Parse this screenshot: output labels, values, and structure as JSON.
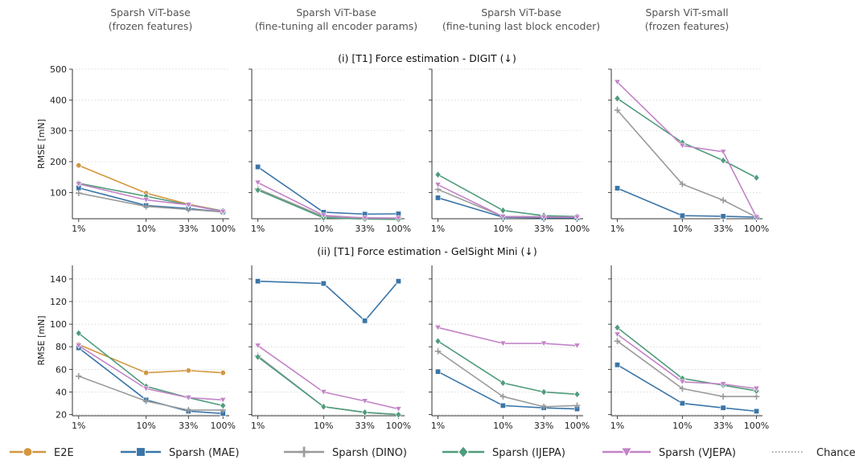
{
  "figure": {
    "column_titles": [
      [
        "Sparsh ViT-base",
        "(frozen features)"
      ],
      [
        "Sparsh ViT-base",
        "(fine-tuning all encoder params)"
      ],
      [
        "Sparsh ViT-base",
        "(fine-tuning last block encoder)"
      ],
      [
        "Sparsh ViT-small",
        "(frozen features)"
      ]
    ],
    "row_titles": [
      "(i) [T1] Force estimation - DIGIT (↓)",
      "(ii) [T1] Force estimation - GelSight Mini (↓)"
    ]
  },
  "legend": [
    {
      "name": "E2E",
      "color": "#d3963f",
      "marker": "circle"
    },
    {
      "name": "Sparsh (MAE)",
      "color": "#3a75a8",
      "marker": "square"
    },
    {
      "name": "Sparsh (DINO)",
      "color": "#9a9a9a",
      "marker": "plus"
    },
    {
      "name": "Sparsh (IJEPA)",
      "color": "#4f9c7c",
      "marker": "diamond"
    },
    {
      "name": "Sparsh (VJEPA)",
      "color": "#c283c6",
      "marker": "triangle-down"
    },
    {
      "name": "Chance",
      "color": "#777777",
      "marker": "dotted"
    }
  ],
  "chart_data": [
    {
      "type": "line",
      "row": 0,
      "col": 0,
      "x": [
        "1%",
        "10%",
        "33%",
        "100%"
      ],
      "ylabel": "RMSE [mN]",
      "ylim": [
        15,
        500
      ],
      "yticks": [
        100,
        200,
        300,
        400,
        500
      ],
      "grid": "horizontal-dotted",
      "series": [
        {
          "name": "E2E",
          "values": [
            188,
            98,
            62,
            40
          ]
        },
        {
          "name": "Sparsh (MAE)",
          "values": [
            115,
            58,
            48,
            37
          ]
        },
        {
          "name": "Sparsh (DINO)",
          "values": [
            98,
            55,
            45,
            37
          ]
        },
        {
          "name": "Sparsh (IJEPA)",
          "values": [
            130,
            88,
            60,
            40
          ]
        },
        {
          "name": "Sparsh (VJEPA)",
          "values": [
            128,
            76,
            60,
            38
          ]
        }
      ]
    },
    {
      "type": "line",
      "row": 0,
      "col": 1,
      "x": [
        "1%",
        "10%",
        "33%",
        "100%"
      ],
      "ylim": [
        15,
        500
      ],
      "yticks": [
        100,
        200,
        300,
        400,
        500
      ],
      "grid": "horizontal-dotted",
      "series": [
        {
          "name": "Sparsh (MAE)",
          "values": [
            183,
            36,
            30,
            31
          ]
        },
        {
          "name": "Sparsh (DINO)",
          "values": [
            112,
            22,
            18,
            17
          ]
        },
        {
          "name": "Sparsh (IJEPA)",
          "values": [
            108,
            18,
            14,
            13
          ]
        },
        {
          "name": "Sparsh (VJEPA)",
          "values": [
            132,
            26,
            17,
            17
          ]
        }
      ]
    },
    {
      "type": "line",
      "row": 0,
      "col": 2,
      "x": [
        "1%",
        "10%",
        "33%",
        "100%"
      ],
      "ylim": [
        15,
        500
      ],
      "yticks": [
        100,
        200,
        300,
        400,
        500
      ],
      "grid": "horizontal-dotted",
      "series": [
        {
          "name": "Sparsh (MAE)",
          "values": [
            83,
            20,
            18,
            18
          ]
        },
        {
          "name": "Sparsh (DINO)",
          "values": [
            110,
            22,
            22,
            22
          ]
        },
        {
          "name": "Sparsh (IJEPA)",
          "values": [
            158,
            42,
            25,
            22
          ]
        },
        {
          "name": "Sparsh (VJEPA)",
          "values": [
            125,
            22,
            20,
            20
          ]
        }
      ]
    },
    {
      "type": "line",
      "row": 0,
      "col": 3,
      "x": [
        "1%",
        "10%",
        "33%",
        "100%"
      ],
      "ylim": [
        15,
        500
      ],
      "yticks": [
        100,
        200,
        300,
        400,
        500
      ],
      "grid": "horizontal-dotted",
      "series": [
        {
          "name": "Sparsh (MAE)",
          "values": [
            114,
            25,
            23,
            20
          ]
        },
        {
          "name": "Sparsh (DINO)",
          "values": [
            367,
            127,
            75,
            20
          ]
        },
        {
          "name": "Sparsh (IJEPA)",
          "values": [
            405,
            262,
            204,
            148
          ]
        },
        {
          "name": "Sparsh (VJEPA)",
          "values": [
            458,
            252,
            232,
            20
          ]
        }
      ]
    },
    {
      "type": "line",
      "row": 1,
      "col": 0,
      "x": [
        "1%",
        "10%",
        "33%",
        "100%"
      ],
      "ylabel": "RMSE [mN]",
      "ylim": [
        19,
        152
      ],
      "yticks": [
        20,
        40,
        60,
        80,
        100,
        120,
        140
      ],
      "grid": "horizontal-dotted",
      "series": [
        {
          "name": "E2E",
          "values": [
            82,
            57,
            59,
            57
          ]
        },
        {
          "name": "Sparsh (MAE)",
          "values": [
            79,
            33,
            23,
            21
          ]
        },
        {
          "name": "Sparsh (DINO)",
          "values": [
            54,
            32,
            24,
            24
          ]
        },
        {
          "name": "Sparsh (IJEPA)",
          "values": [
            92,
            45,
            35,
            28
          ]
        },
        {
          "name": "Sparsh (VJEPA)",
          "values": [
            81,
            43,
            35,
            33
          ]
        }
      ]
    },
    {
      "type": "line",
      "row": 1,
      "col": 1,
      "x": [
        "1%",
        "10%",
        "33%",
        "100%"
      ],
      "ylim": [
        19,
        152
      ],
      "yticks": [
        20,
        40,
        60,
        80,
        100,
        120,
        140
      ],
      "grid": "horizontal-dotted",
      "series": [
        {
          "name": "Sparsh (MAE)",
          "values": [
            138,
            136,
            103,
            138
          ]
        },
        {
          "name": "Sparsh (DINO)",
          "values": [
            72,
            27,
            22,
            20
          ]
        },
        {
          "name": "Sparsh (IJEPA)",
          "values": [
            71,
            27,
            22,
            20
          ]
        },
        {
          "name": "Sparsh (VJEPA)",
          "values": [
            81,
            40,
            32,
            25
          ]
        }
      ]
    },
    {
      "type": "line",
      "row": 1,
      "col": 2,
      "x": [
        "1%",
        "10%",
        "33%",
        "100%"
      ],
      "ylim": [
        19,
        152
      ],
      "yticks": [
        20,
        40,
        60,
        80,
        100,
        120,
        140
      ],
      "grid": "horizontal-dotted",
      "series": [
        {
          "name": "Sparsh (MAE)",
          "values": [
            58,
            28,
            26,
            25
          ]
        },
        {
          "name": "Sparsh (DINO)",
          "values": [
            76,
            36,
            27,
            28
          ]
        },
        {
          "name": "Sparsh (IJEPA)",
          "values": [
            85,
            48,
            40,
            38
          ]
        },
        {
          "name": "Sparsh (VJEPA)",
          "values": [
            97,
            83,
            83,
            81
          ]
        }
      ]
    },
    {
      "type": "line",
      "row": 1,
      "col": 3,
      "x": [
        "1%",
        "10%",
        "33%",
        "100%"
      ],
      "ylim": [
        19,
        152
      ],
      "yticks": [
        20,
        40,
        60,
        80,
        100,
        120,
        140
      ],
      "grid": "horizontal-dotted",
      "series": [
        {
          "name": "Sparsh (MAE)",
          "values": [
            64,
            30,
            26,
            23
          ]
        },
        {
          "name": "Sparsh (DINO)",
          "values": [
            85,
            43,
            36,
            36
          ]
        },
        {
          "name": "Sparsh (IJEPA)",
          "values": [
            97,
            52,
            46,
            41
          ]
        },
        {
          "name": "Sparsh (VJEPA)",
          "values": [
            91,
            49,
            47,
            43
          ]
        }
      ]
    }
  ]
}
